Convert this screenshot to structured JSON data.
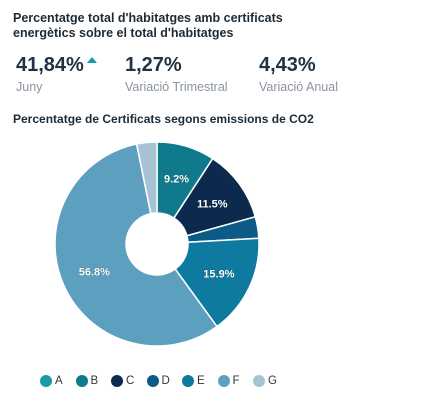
{
  "header": {
    "title": "Percentatge total d'habitatges amb certificats energètics sobre el total d'habitatges"
  },
  "kpis": [
    {
      "value": "41,84%",
      "label": "Juny",
      "trend": "up"
    },
    {
      "value": "1,27%",
      "label": "Variació Trimestral"
    },
    {
      "value": "4,43%",
      "label": "Variació Anual"
    }
  ],
  "chart_data": {
    "type": "pie",
    "title": "Percentatge de Certificats segons emissions de CO2",
    "donut": true,
    "categories": [
      "A",
      "B",
      "C",
      "D",
      "E",
      "F",
      "G"
    ],
    "values": [
      0.0,
      9.2,
      11.5,
      3.4,
      15.9,
      56.8,
      3.2
    ],
    "data_labels": [
      "",
      "9.2%",
      "11.5%",
      "",
      "15.9%",
      "56.8%",
      ""
    ],
    "colors": [
      "#1a9aa8",
      "#0e7a8c",
      "#0c2a4e",
      "#0b5b86",
      "#0e7aa0",
      "#5d9fbf",
      "#a6c2d3"
    ],
    "legend_position": "bottom"
  }
}
